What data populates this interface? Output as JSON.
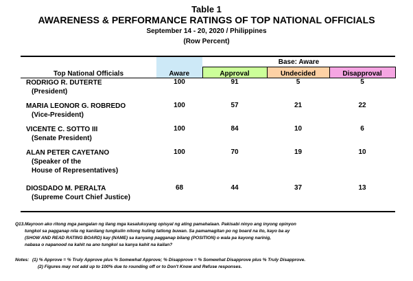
{
  "header": {
    "table_no": "Table 1",
    "title": "AWARENESS & PERFORMANCE RATINGS OF TOP NATIONAL OFFICIALS",
    "dates": "September 14 - 20, 2020 / Philippines",
    "basis": "(Row Percent)"
  },
  "table": {
    "base_label": "Base: Aware",
    "columns": {
      "officials": "Top National Officials",
      "aware": "Aware",
      "approval": "Approval",
      "undecided": "Undecided",
      "disapproval": "Disapproval"
    },
    "colors": {
      "aware": "#cde9f7",
      "approval": "#ccff99",
      "undecided": "#fdd1a5",
      "disapproval": "#f5a5e2"
    },
    "rows": [
      {
        "name": "RODRIGO R. DUTERTE",
        "title_lines": [
          "(President)"
        ],
        "aware": "100",
        "approval": "91",
        "undecided": "5",
        "disapproval": "5"
      },
      {
        "name": "MARIA LEONOR G. ROBREDO",
        "title_lines": [
          "(Vice-President)"
        ],
        "aware": "100",
        "approval": "57",
        "undecided": "21",
        "disapproval": "22"
      },
      {
        "name": "VICENTE C. SOTTO III",
        "title_lines": [
          "(Senate President)"
        ],
        "aware": "100",
        "approval": "84",
        "undecided": "10",
        "disapproval": "6"
      },
      {
        "name": "ALAN PETER CAYETANO",
        "title_lines": [
          "(Speaker of the",
          "House of Representatives)"
        ],
        "aware": "100",
        "approval": "70",
        "undecided": "19",
        "disapproval": "10"
      },
      {
        "name": "DIOSDADO M. PERALTA",
        "title_lines": [
          "(Supreme Court Chief Justice)"
        ],
        "aware": "68",
        "approval": "44",
        "undecided": "37",
        "disapproval": "13"
      }
    ]
  },
  "footnotes": {
    "q_label": "Q13.",
    "q_lines": [
      "Mayroon ako ritong mga pangalan ng ilang mga kasalukuyang opisyal ng ating pamahalaan. Pakisabi ninyo ang inyong opinyon",
      "tungkol sa pagganap nila ng kanilang tungkulin nitong huling tatlong buwan. Sa pamamagitan po ng board na ito, kayo ba ay",
      "(SHOW AND READ RATING BOARD) kay (NAME) sa kanyang pagganap bilang (POSITION) o wala pa kayong narinig,",
      "nabasa o napanood na kahit na ano tungkol sa kanya kahit na kailan?"
    ],
    "notes_label": "Notes:",
    "notes_lines": [
      "(1) % Approve = % Truly Approve plus % Somewhat Approve; % Disapprove = % Somewhat Disapprove plus % Truly Disapprove.",
      "(2) Figures may not add up to 100% due to rounding off or to Don't Know and Refuse responses."
    ]
  }
}
